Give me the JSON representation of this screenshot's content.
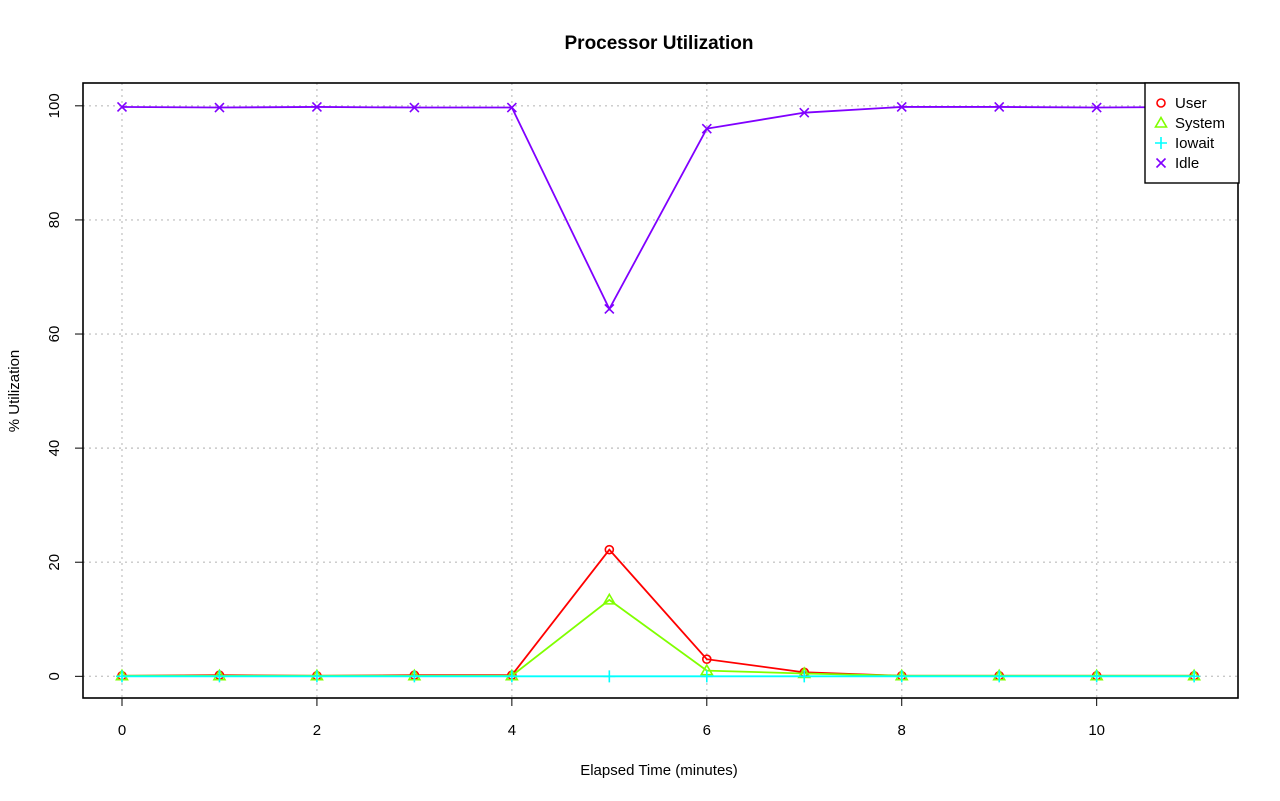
{
  "chart_data": {
    "type": "line",
    "title": "Processor Utilization",
    "xlabel": "Elapsed Time (minutes)",
    "ylabel": "% Utilization",
    "xlim": [
      -0.4,
      11.45
    ],
    "ylim": [
      -3.8,
      104
    ],
    "x_ticks": [
      0,
      2,
      4,
      6,
      8,
      10
    ],
    "y_ticks": [
      0,
      20,
      40,
      60,
      80,
      100
    ],
    "grid": true,
    "legend_position": "top-right",
    "x": [
      0,
      1,
      2,
      3,
      4,
      5,
      6,
      7,
      8,
      9,
      10,
      11
    ],
    "series": [
      {
        "name": "User",
        "color": "#ff0000",
        "marker": "circle",
        "values": [
          0.1,
          0.2,
          0.1,
          0.2,
          0.2,
          22.2,
          3.0,
          0.7,
          0.1,
          0.1,
          0.1,
          0.1
        ]
      },
      {
        "name": "System",
        "color": "#80ff00",
        "marker": "triangle",
        "values": [
          0.1,
          0.1,
          0.1,
          0.1,
          0.1,
          13.4,
          1.0,
          0.5,
          0.1,
          0.1,
          0.1,
          0.1
        ]
      },
      {
        "name": "Iowait",
        "color": "#00ffff",
        "marker": "plus",
        "values": [
          0.0,
          0.0,
          0.0,
          0.0,
          0.0,
          0.0,
          0.0,
          0.0,
          0.0,
          0.0,
          0.0,
          0.0
        ]
      },
      {
        "name": "Idle",
        "color": "#8000ff",
        "marker": "cross",
        "values": [
          99.8,
          99.7,
          99.8,
          99.7,
          99.7,
          64.4,
          96.0,
          98.8,
          99.8,
          99.8,
          99.7,
          99.8
        ]
      }
    ]
  }
}
